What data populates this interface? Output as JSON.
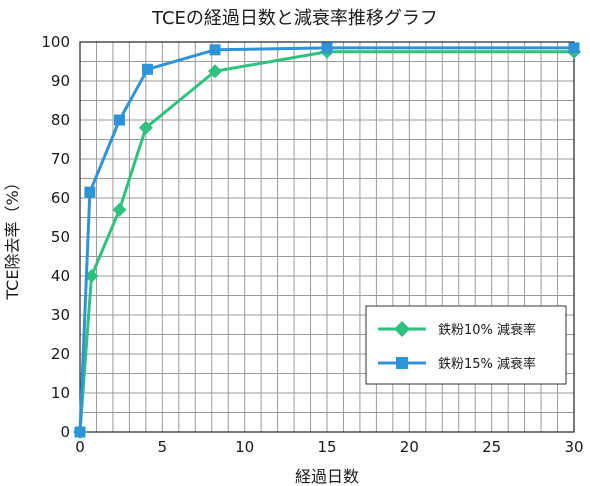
{
  "chart_data": {
    "type": "line",
    "title": "TCEの経過日数と減衰率推移グラフ",
    "xlabel": "経過日数",
    "ylabel": "TCE除去率（%）",
    "xlim": [
      0,
      30
    ],
    "ylim": [
      0,
      100
    ],
    "xticks": [
      0,
      5,
      10,
      15,
      20,
      25,
      30
    ],
    "yticks": [
      0,
      10,
      20,
      30,
      40,
      50,
      60,
      70,
      80,
      90,
      100
    ],
    "grid": true,
    "legend_position": "bottom-right",
    "series": [
      {
        "name": "鉄粉10% 減衰率",
        "color": "#2ec27e",
        "marker": "diamond",
        "x": [
          0,
          0.7,
          2.4,
          4.0,
          8.2,
          15,
          30
        ],
        "y": [
          0,
          40,
          57,
          78,
          92.5,
          97.5,
          97.5
        ]
      },
      {
        "name": "鉄粉15% 減衰率",
        "color": "#2f93d8",
        "marker": "square",
        "x": [
          0,
          0.6,
          2.4,
          4.1,
          8.2,
          15,
          30
        ],
        "y": [
          0,
          61.5,
          80,
          93,
          98,
          98.5,
          98.5
        ]
      }
    ]
  }
}
